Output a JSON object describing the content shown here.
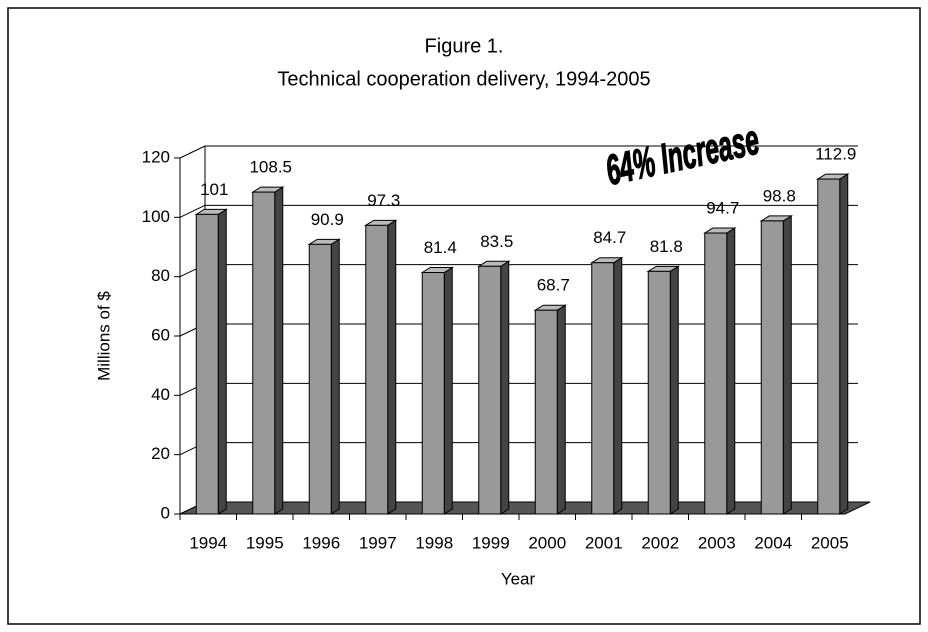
{
  "chart_data": {
    "type": "bar",
    "title": "Figure 1.",
    "subtitle": "Technical cooperation delivery, 1994-2005",
    "categories": [
      "1994",
      "1995",
      "1996",
      "1997",
      "1998",
      "1999",
      "2000",
      "2001",
      "2002",
      "2003",
      "2004",
      "2005"
    ],
    "values": [
      101,
      108.5,
      90.9,
      97.3,
      81.4,
      83.5,
      68.7,
      84.7,
      81.8,
      94.7,
      98.8,
      112.9
    ],
    "color": "#999999",
    "ylim": [
      0,
      120
    ],
    "yticks": [
      0,
      20,
      40,
      60,
      80,
      100,
      120
    ],
    "grid": true,
    "y_label": "Millions of $",
    "x_label": "Year",
    "annotation": "64% Increase"
  }
}
